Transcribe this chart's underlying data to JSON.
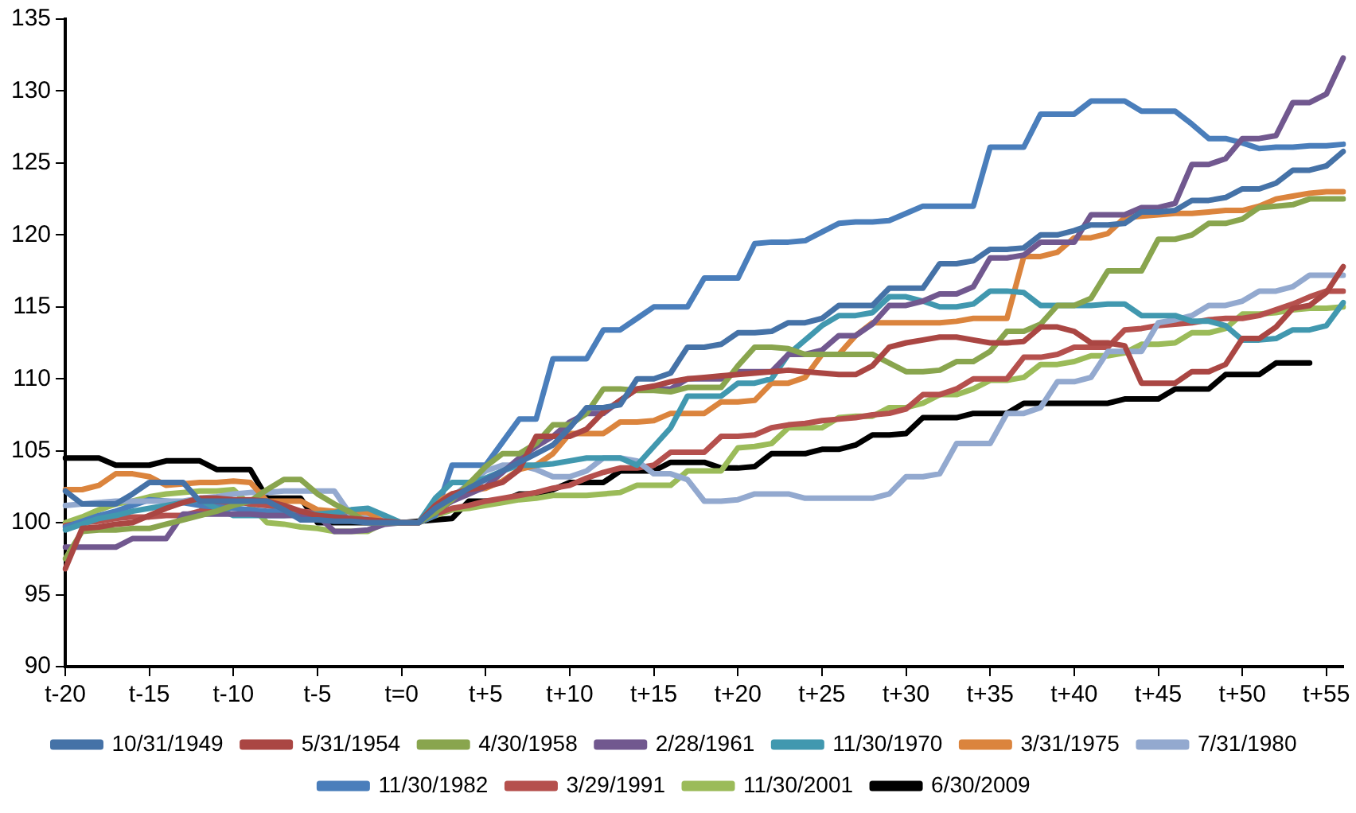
{
  "chart_data": {
    "type": "line",
    "ylim": [
      90,
      135
    ],
    "categories": [
      "t-20",
      null,
      null,
      null,
      null,
      "t-15",
      null,
      null,
      null,
      null,
      "t-10",
      null,
      null,
      null,
      null,
      "t-5",
      null,
      null,
      null,
      null,
      "t=0",
      null,
      null,
      null,
      null,
      "t+5",
      null,
      null,
      null,
      null,
      "t+10",
      null,
      null,
      null,
      null,
      "t+15",
      null,
      null,
      null,
      null,
      "t+20",
      null,
      null,
      null,
      null,
      "t+25",
      null,
      null,
      null,
      null,
      "t+30",
      null,
      null,
      null,
      null,
      "t+35",
      null,
      null,
      null,
      null,
      "t+40",
      null,
      null,
      null,
      null,
      "t+45",
      null,
      null,
      null,
      null,
      "t+50",
      null,
      null,
      null,
      null,
      "t+55",
      null
    ],
    "yticks": [
      90,
      95,
      100,
      105,
      110,
      115,
      120,
      125,
      130,
      135
    ],
    "grid": false,
    "legend": "bottom",
    "marker": "none",
    "line_style": "solid",
    "series": [
      {
        "name": "10/31/1949",
        "color": "#4572a7",
        "values": [
          102.2,
          101.3,
          101.3,
          101.3,
          102,
          102.8,
          102.8,
          102.8,
          101.5,
          101.5,
          101.5,
          101.5,
          101.5,
          100.9,
          100.2,
          100.2,
          100.1,
          100.1,
          100,
          100,
          100,
          100,
          101,
          101.7,
          102.4,
          103,
          103.6,
          104.2,
          104.8,
          105.4,
          106.6,
          108,
          108,
          108.2,
          110,
          110,
          110.4,
          112.2,
          112.2,
          112.4,
          113.2,
          113.2,
          113.3,
          113.9,
          113.9,
          114.2,
          115.1,
          115.1,
          115.1,
          116.3,
          116.3,
          116.3,
          118,
          118,
          118.2,
          119,
          119,
          119.1,
          120,
          120,
          120.3,
          120.7,
          120.7,
          120.8,
          121.6,
          121.6,
          121.7,
          122.4,
          122.4,
          122.6,
          123.2,
          123.2,
          123.6,
          124.5,
          124.5,
          124.8,
          125.8
        ]
      },
      {
        "name": "5/31/1954",
        "color": "#aa4643",
        "values": [
          96.8,
          99.6,
          99.7,
          99.9,
          100,
          100.5,
          101,
          101.4,
          101.7,
          101.7,
          101.6,
          101.6,
          101.5,
          101.2,
          100.8,
          100.5,
          100.4,
          100.3,
          100.2,
          100.1,
          100,
          100,
          101.2,
          102,
          102.3,
          102.5,
          102.8,
          103.7,
          106,
          106,
          106,
          106.5,
          107.7,
          108.5,
          109.3,
          109.5,
          109.8,
          110,
          110.1,
          110.2,
          110.3,
          110.4,
          110.5,
          110.6,
          110.5,
          110.4,
          110.3,
          110.3,
          110.9,
          112.2,
          112.5,
          112.7,
          112.9,
          112.9,
          112.7,
          112.5,
          112.5,
          112.6,
          113.6,
          113.6,
          113.3,
          112.5,
          112.5,
          112.3,
          109.7,
          109.7,
          109.7,
          110.5,
          110.5,
          111,
          112.8,
          112.8,
          113.6,
          114.9,
          115.1,
          116,
          117.8
        ]
      },
      {
        "name": "4/30/1958",
        "color": "#89a54e",
        "values": [
          97.5,
          99.4,
          99.5,
          99.5,
          99.6,
          99.6,
          99.9,
          100.2,
          100.5,
          100.8,
          101.2,
          101.5,
          102.3,
          103,
          103,
          102,
          101.3,
          100.7,
          100,
          100,
          100,
          100,
          100.7,
          101.6,
          102.7,
          103.9,
          104.8,
          104.8,
          105.5,
          106.8,
          106.8,
          107.6,
          109.3,
          109.3,
          109.2,
          109.2,
          109.1,
          109.4,
          109.4,
          109.4,
          110.9,
          112.2,
          112.2,
          112.1,
          111.7,
          111.7,
          111.7,
          111.7,
          111.7,
          111.1,
          110.5,
          110.5,
          110.6,
          111.2,
          111.2,
          111.9,
          113.3,
          113.3,
          113.8,
          115.1,
          115.1,
          115.6,
          117.5,
          117.5,
          117.5,
          119.7,
          119.7,
          120,
          120.8,
          120.8,
          121.1,
          121.9,
          122,
          122.1,
          122.5,
          122.5,
          122.5
        ]
      },
      {
        "name": "2/28/1961",
        "color": "#71588f",
        "values": [
          98.3,
          98.3,
          98.3,
          98.3,
          98.9,
          98.9,
          98.9,
          100.6,
          100.6,
          100.6,
          100.6,
          100.6,
          100.5,
          100.5,
          100.5,
          100.5,
          99.4,
          99.4,
          99.5,
          99.9,
          100,
          100,
          100.8,
          101.5,
          102,
          102.5,
          103.5,
          104.5,
          105.3,
          106,
          107,
          107.6,
          107.6,
          108.5,
          109.3,
          109.3,
          109.3,
          110,
          110,
          110,
          110.5,
          110.5,
          110.5,
          111.7,
          111.7,
          112,
          113,
          113,
          113.8,
          115.1,
          115.1,
          115.4,
          115.9,
          115.9,
          116.4,
          118.4,
          118.4,
          118.6,
          119.5,
          119.5,
          119.5,
          121.4,
          121.4,
          121.4,
          121.9,
          121.9,
          122.2,
          124.9,
          124.9,
          125.3,
          126.7,
          126.7,
          126.9,
          129.2,
          129.2,
          129.8,
          132.3
        ]
      },
      {
        "name": "11/30/1970",
        "color": "#4198af",
        "values": [
          99.5,
          99.9,
          100.3,
          100.5,
          100.8,
          101,
          101.2,
          101.4,
          101.6,
          101,
          100.5,
          100.5,
          100.5,
          100.5,
          100.6,
          100.6,
          100.7,
          100.9,
          101,
          100.5,
          100,
          100,
          101.7,
          102.8,
          102.8,
          103.1,
          103.6,
          104,
          104,
          104.1,
          104.3,
          104.5,
          104.5,
          104.5,
          104,
          105.3,
          106.6,
          108.8,
          108.8,
          108.8,
          109.7,
          109.7,
          110,
          111.7,
          112.7,
          113.7,
          114.4,
          114.4,
          114.6,
          115.7,
          115.7,
          115.4,
          115,
          115,
          115.2,
          116.1,
          116.1,
          116,
          115.1,
          115.1,
          115.1,
          115.1,
          115.2,
          115.2,
          114.4,
          114.4,
          114.4,
          114,
          114,
          113.7,
          112.7,
          112.7,
          112.8,
          113.4,
          113.4,
          113.7,
          115.3
        ]
      },
      {
        "name": "3/31/1975",
        "color": "#db843d",
        "values": [
          102.3,
          102.3,
          102.6,
          103.4,
          103.4,
          103.2,
          102.6,
          102.7,
          102.8,
          102.8,
          102.9,
          102.8,
          101.5,
          101.5,
          101.5,
          100.9,
          100.8,
          100.8,
          100.7,
          100,
          100,
          100,
          101.4,
          102,
          102.2,
          102.4,
          102.9,
          103.7,
          104,
          104.8,
          106.2,
          106.2,
          106.2,
          107,
          107,
          107.1,
          107.6,
          107.6,
          107.6,
          108.4,
          108.4,
          108.5,
          109.7,
          109.7,
          110.1,
          111.7,
          111.7,
          113,
          113.9,
          113.9,
          113.9,
          113.9,
          113.9,
          114,
          114.2,
          114.2,
          114.2,
          118.5,
          118.5,
          118.8,
          119.8,
          119.8,
          120.1,
          121.2,
          121.3,
          121.4,
          121.5,
          121.5,
          121.6,
          121.7,
          121.7,
          122,
          122.5,
          122.7,
          122.9,
          123,
          123
        ]
      },
      {
        "name": "7/31/1980",
        "color": "#93a9cf",
        "values": [
          101.2,
          101.3,
          101.4,
          101.5,
          101.5,
          101.5,
          101.5,
          101.5,
          101.7,
          101.8,
          102,
          102.1,
          102.1,
          102.2,
          102.2,
          102.2,
          102.2,
          100.5,
          100.3,
          100.2,
          100,
          100,
          100.9,
          101.8,
          102.7,
          103.6,
          104,
          104,
          103.7,
          103.2,
          103.2,
          103.6,
          104.5,
          104.5,
          104.3,
          103.4,
          103.4,
          103,
          101.5,
          101.5,
          101.6,
          102,
          102,
          102,
          101.7,
          101.7,
          101.7,
          101.7,
          101.7,
          102,
          103.2,
          103.2,
          103.4,
          105.5,
          105.5,
          105.5,
          107.6,
          107.6,
          108,
          109.8,
          109.8,
          110.1,
          111.9,
          111.9,
          111.9,
          113.9,
          114.1,
          114.4,
          115.1,
          115.1,
          115.4,
          116.1,
          116.1,
          116.4,
          117.2,
          117.2,
          117.2
        ]
      },
      {
        "name": "11/30/1982",
        "color": "#4a7ebb",
        "values": [
          99.7,
          100.1,
          100.5,
          100.8,
          101.2,
          101.6,
          101.5,
          101.4,
          101.2,
          101.1,
          101,
          100.9,
          100.8,
          100.8,
          100.7,
          100.6,
          100.5,
          100.4,
          100.2,
          100.1,
          100,
          100,
          100.5,
          104,
          104,
          104,
          105.6,
          107.2,
          107.2,
          111.4,
          111.4,
          111.4,
          113.4,
          113.4,
          114.2,
          115,
          115,
          115,
          117,
          117,
          117,
          119.4,
          119.5,
          119.5,
          119.6,
          120.2,
          120.8,
          120.9,
          120.9,
          121,
          121.5,
          122,
          122,
          122,
          122,
          126.1,
          126.1,
          126.1,
          128.4,
          128.4,
          128.4,
          129.3,
          129.3,
          129.3,
          128.6,
          128.6,
          128.6,
          127.7,
          126.7,
          126.7,
          126.4,
          126,
          126.1,
          126.1,
          126.2,
          126.2,
          126.3
        ]
      },
      {
        "name": "3/29/1991",
        "color": "#b5504d",
        "values": [
          99.8,
          100,
          100.1,
          100.3,
          100.4,
          100.4,
          100.5,
          100.5,
          100.8,
          101.2,
          101.5,
          101.3,
          101.2,
          101,
          100.8,
          100.7,
          100.5,
          100.4,
          100.3,
          100.1,
          100,
          100,
          100.6,
          101,
          101.2,
          101.5,
          101.7,
          101.9,
          102.1,
          102.4,
          102.6,
          103.1,
          103.5,
          103.8,
          103.8,
          104,
          104.9,
          104.9,
          104.9,
          106,
          106,
          106.1,
          106.6,
          106.8,
          106.9,
          107.1,
          107.2,
          107.3,
          107.5,
          107.6,
          107.9,
          108.9,
          108.9,
          109.3,
          110,
          110,
          110,
          111.5,
          111.5,
          111.7,
          112.2,
          112.2,
          112.2,
          113.4,
          113.5,
          113.7,
          113.8,
          113.9,
          114.1,
          114.2,
          114.2,
          114.4,
          114.8,
          115.2,
          115.7,
          116.1,
          116.1
        ]
      },
      {
        "name": "11/30/2001",
        "color": "#9bbb59",
        "values": [
          100,
          100.4,
          100.9,
          101.3,
          101.5,
          101.8,
          102,
          102.1,
          102.2,
          102.2,
          102.3,
          101.2,
          100,
          99.9,
          99.7,
          99.6,
          99.4,
          99.4,
          99.4,
          100,
          100,
          100,
          100.5,
          100.9,
          101,
          101.2,
          101.4,
          101.6,
          101.7,
          101.9,
          101.9,
          101.9,
          102,
          102.1,
          102.6,
          102.6,
          102.6,
          103.6,
          103.6,
          103.6,
          105.2,
          105.3,
          105.5,
          106.6,
          106.6,
          106.6,
          107.3,
          107.4,
          107.4,
          108,
          108,
          108.3,
          108.9,
          108.9,
          109.3,
          109.9,
          109.9,
          110.1,
          111,
          111,
          111.2,
          111.6,
          111.6,
          111.8,
          112.4,
          112.4,
          112.5,
          113.2,
          113.2,
          113.5,
          114.5,
          114.5,
          114.6,
          114.8,
          114.9,
          114.9,
          115
        ]
      },
      {
        "name": "6/30/2009",
        "color": "#000000",
        "values": [
          104.5,
          104.5,
          104.5,
          104,
          104,
          104,
          104.3,
          104.3,
          104.3,
          103.7,
          103.7,
          103.7,
          101.7,
          101.7,
          101.7,
          100,
          100,
          100,
          100,
          100,
          100,
          100.1,
          100.2,
          100.3,
          101.5,
          101.5,
          101.5,
          102,
          102,
          102.3,
          102.8,
          102.8,
          102.8,
          103.6,
          103.6,
          103.6,
          104.2,
          104.2,
          104.2,
          103.8,
          103.8,
          103.9,
          104.8,
          104.8,
          104.8,
          105.1,
          105.1,
          105.4,
          106.1,
          106.1,
          106.2,
          107.3,
          107.3,
          107.3,
          107.6,
          107.6,
          107.6,
          108.3,
          108.3,
          108.3,
          108.3,
          108.3,
          108.3,
          108.6,
          108.6,
          108.6,
          109.3,
          109.3,
          109.3,
          110.3,
          110.3,
          110.3,
          111.1,
          111.1,
          111.1,
          null,
          null
        ]
      }
    ]
  }
}
